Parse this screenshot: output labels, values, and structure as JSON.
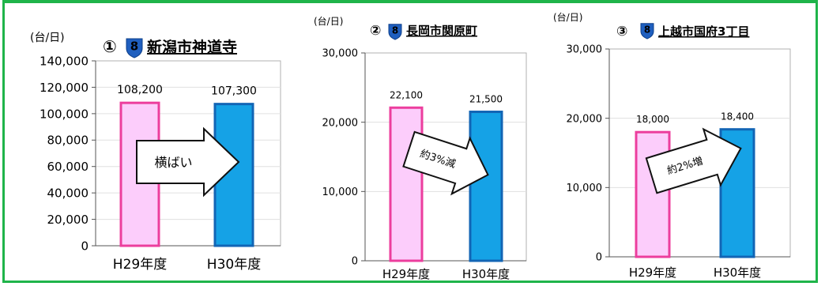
{
  "colors": {
    "border": "#1fb44a",
    "h29_fill": "#fccdfb",
    "h29_stroke": "#ec3e9d",
    "h30_fill": "#15a2e6",
    "h30_stroke": "#1265b5",
    "route_badge": "#1f5fbf"
  },
  "route_icon": "route-8-shield-icon",
  "chart_data": [
    {
      "type": "bar",
      "index": "①",
      "route_number": "8",
      "title": "新潟市神道寺",
      "unit_label": "(台/日)",
      "categories": [
        "H29年度",
        "H30年度"
      ],
      "values": [
        108200,
        107300
      ],
      "value_labels": [
        "108,200",
        "107,300"
      ],
      "ylim": [
        0,
        140000
      ],
      "yticks": [
        "0",
        "20,000",
        "40,000",
        "60,000",
        "80,000",
        "100,000",
        "120,000",
        "140,000"
      ],
      "grid": true,
      "arrow_label": "横ばい",
      "arrow_trend": "flat"
    },
    {
      "type": "bar",
      "index": "②",
      "route_number": "8",
      "title": "長岡市関原町",
      "unit_label": "(台/日)",
      "categories": [
        "H29年度",
        "H30年度"
      ],
      "values": [
        22100,
        21500
      ],
      "value_labels": [
        "22,100",
        "21,500"
      ],
      "ylim": [
        0,
        30000
      ],
      "yticks": [
        "0",
        "10,000",
        "20,000",
        "30,000"
      ],
      "grid": true,
      "arrow_label": "約3%減",
      "arrow_trend": "down"
    },
    {
      "type": "bar",
      "index": "③",
      "route_number": "8",
      "title": "上越市国府3丁目",
      "unit_label": "(台/日)",
      "categories": [
        "H29年度",
        "H30年度"
      ],
      "values": [
        18000,
        18400
      ],
      "value_labels": [
        "18,000",
        "18,400"
      ],
      "ylim": [
        0,
        30000
      ],
      "yticks": [
        "0",
        "10,000",
        "20,000",
        "30,000"
      ],
      "grid": true,
      "arrow_label": "約2%増",
      "arrow_trend": "up"
    }
  ]
}
